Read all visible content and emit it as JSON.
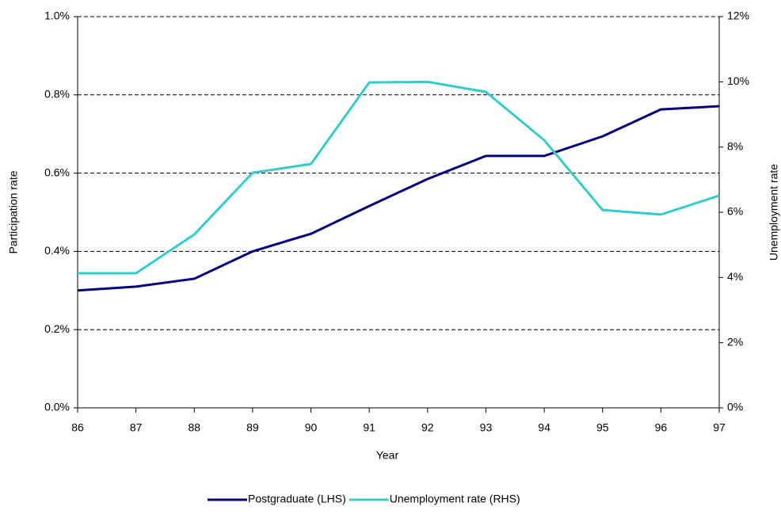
{
  "chart_data": {
    "type": "line",
    "x_label": "Year",
    "y_label": "Participation rate",
    "y2_label": "Unemployment rate",
    "x": [
      86,
      87,
      88,
      89,
      90,
      91,
      92,
      93,
      94,
      95,
      96,
      97
    ],
    "xlim": [
      86,
      97
    ],
    "xticks": [
      86,
      87,
      88,
      89,
      90,
      91,
      92,
      93,
      94,
      95,
      96,
      97
    ],
    "ylim": [
      0,
      1.0
    ],
    "yticks": [
      {
        "value": 0,
        "label": "0.0%"
      },
      {
        "value": 0.2,
        "label": "0.2%"
      },
      {
        "value": 0.4,
        "label": "0.4%"
      },
      {
        "value": 0.6,
        "label": "0.6%"
      },
      {
        "value": 0.8,
        "label": "0.8%"
      },
      {
        "value": 1.0,
        "label": "1.0%"
      }
    ],
    "y2lim": [
      0,
      12
    ],
    "y2ticks": [
      {
        "value": 0,
        "label": "0%"
      },
      {
        "value": 2,
        "label": "2%"
      },
      {
        "value": 4,
        "label": "4%"
      },
      {
        "value": 6,
        "label": "6%"
      },
      {
        "value": 8,
        "label": "8%"
      },
      {
        "value": 10,
        "label": "10%"
      },
      {
        "value": 12,
        "label": "12%"
      }
    ],
    "grid": true,
    "legend": "bottom",
    "series": [
      {
        "name": "Postgraduate (LHS)",
        "color": "#000080",
        "values": [
          0.3,
          0.31,
          0.33,
          0.4,
          0.445,
          0.516,
          0.585,
          0.644,
          0.644,
          0.694,
          0.763,
          0.771
        ]
      },
      {
        "name": "Unemployment rate (RHS)",
        "color": "#33cccc",
        "axis": "y2",
        "values": [
          4.13,
          4.13,
          5.32,
          7.21,
          7.48,
          9.98,
          10.0,
          9.69,
          8.21,
          6.07,
          5.93,
          6.51
        ]
      }
    ]
  }
}
